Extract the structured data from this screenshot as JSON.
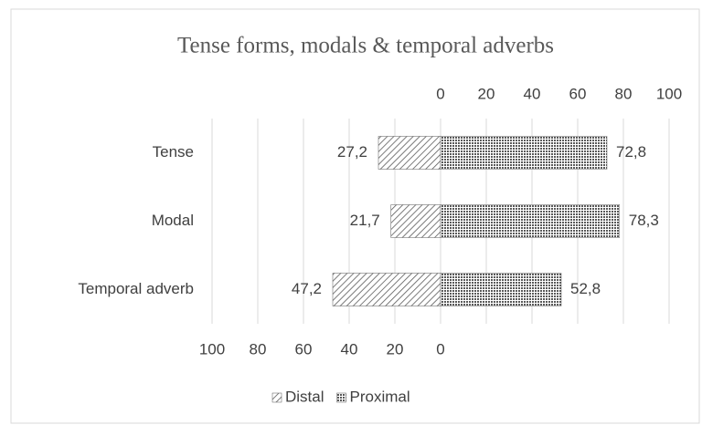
{
  "chart_data": {
    "type": "diverging_bar",
    "title": "Tense forms, modals & temporal adverbs",
    "categories": [
      "Tense",
      "Modal",
      "Temporal adverb"
    ],
    "series": [
      {
        "name": "Distal",
        "color": "#595959",
        "axis": "x2",
        "values": [
          27.2,
          21.7,
          47.2
        ],
        "value_labels": [
          "27,2",
          "21,7",
          "47,2"
        ]
      },
      {
        "name": "Proximal",
        "color": "#595959",
        "values": [
          72.8,
          78.3,
          52.8
        ],
        "value_labels": [
          "72,8",
          "78,3",
          "52,8"
        ]
      }
    ],
    "xlim": [
      0,
      100
    ],
    "xticks": [
      0,
      20,
      40,
      60,
      80,
      100
    ],
    "x2lim": [
      100,
      0
    ],
    "x2ticks": [
      100,
      80,
      60,
      40,
      20,
      0
    ],
    "grid": true,
    "legend": "bottom"
  }
}
